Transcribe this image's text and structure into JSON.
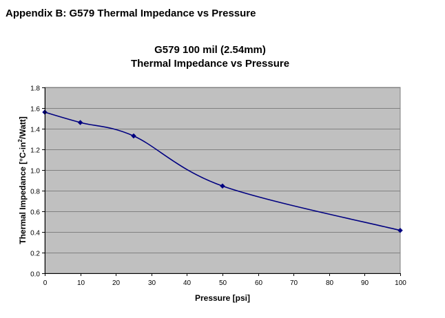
{
  "page": {
    "heading": "Appendix B: G579 Thermal Impedance vs Pressure"
  },
  "chart_data": {
    "type": "line",
    "title": "G579 100 mil (2.54mm)",
    "subtitle": "Thermal Impedance vs Pressure",
    "xlabel": "Pressure [psi]",
    "ylabel_parts": [
      "Thermal Impedance [°C-in",
      "2",
      "/Watt]"
    ],
    "xlim": [
      0,
      100
    ],
    "ylim": [
      0,
      1.8
    ],
    "x_ticks": [
      0,
      10,
      20,
      30,
      40,
      50,
      60,
      70,
      80,
      90,
      100
    ],
    "y_ticks": [
      "0.0",
      "0.2",
      "0.4",
      "0.6",
      "0.8",
      "1.0",
      "1.2",
      "1.4",
      "1.6",
      "1.8"
    ],
    "grid": true,
    "smooth": true,
    "colors": {
      "plot_background": "#c0c0c0",
      "line": "#000080",
      "marker": "#000080",
      "gridline": "#808080"
    },
    "series": [
      {
        "x": [
          0,
          10,
          25,
          50,
          100
        ],
        "y": [
          1.56,
          1.46,
          1.33,
          0.845,
          0.415
        ]
      }
    ]
  }
}
